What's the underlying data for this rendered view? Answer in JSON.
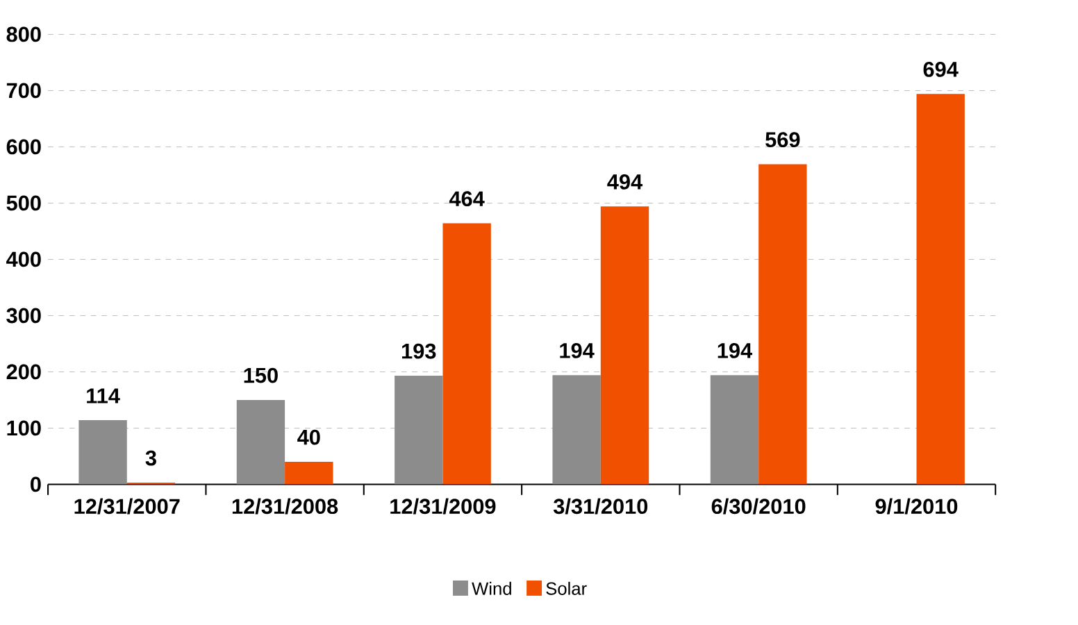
{
  "chart_data": {
    "type": "bar",
    "categories": [
      "12/31/2007",
      "12/31/2008",
      "12/31/2009",
      "3/31/2010",
      "6/30/2010",
      "9/1/2010"
    ],
    "series": [
      {
        "name": "Wind",
        "color": "#8c8c8c",
        "values": [
          114,
          150,
          193,
          194,
          194,
          null
        ]
      },
      {
        "name": "Solar",
        "color": "#f05000",
        "values": [
          3,
          40,
          464,
          494,
          569,
          694
        ]
      }
    ],
    "ylim": [
      0,
      800
    ],
    "yticks": [
      0,
      100,
      200,
      300,
      400,
      500,
      600,
      700,
      800
    ],
    "grid": "y",
    "legend": "bottom",
    "data_labels": true
  }
}
